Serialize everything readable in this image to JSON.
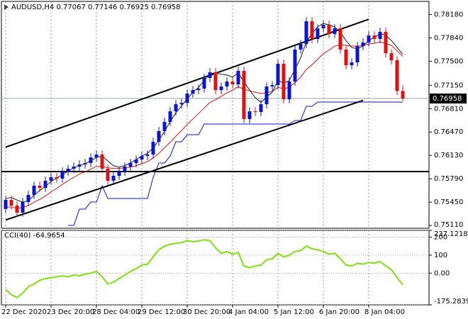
{
  "chart_data": [
    {
      "type": "candlestick",
      "title": "AUDUSD,H4  0.77067 0.77146 0.76925 0.76958",
      "categories": [
        "22 Dec 2020",
        null,
        null,
        null,
        null,
        null,
        null,
        null,
        "23 Dec 20:00",
        null,
        null,
        null,
        null,
        null,
        null,
        null,
        "28 Dec 04:00",
        null,
        null,
        null,
        null,
        null,
        null,
        null,
        "29 Dec 12:00",
        null,
        null,
        null,
        null,
        null,
        null,
        null,
        "30 Dec 20:00",
        null,
        null,
        null,
        null,
        null,
        null,
        null,
        "4 Jan 04:00",
        null,
        null,
        null,
        null,
        null,
        null,
        null,
        "5 Jan 12:00",
        null,
        null,
        null,
        null,
        null,
        null,
        null,
        "6 Jan 20:00",
        null,
        null,
        null,
        null,
        null,
        null,
        null,
        "8 Jan 04:00",
        null,
        null,
        null,
        null,
        null,
        null
      ],
      "open": [
        0.7535,
        0.75483,
        0.754,
        0.75297,
        0.75452,
        0.75555,
        0.75689,
        0.75658,
        0.75761,
        0.75813,
        0.75792,
        0.75895,
        0.75936,
        0.75967,
        0.75998,
        0.76019,
        0.76101,
        0.76143,
        0.75936,
        0.75761,
        0.75833,
        0.75895,
        0.75967,
        0.76019,
        0.7607,
        0.76122,
        0.76143,
        0.76328,
        0.76483,
        0.76617,
        0.76771,
        0.76874,
        0.76894,
        0.77029,
        0.7708,
        0.77101,
        0.77256,
        0.77339,
        0.7708,
        0.77132,
        0.77204,
        0.77163,
        0.7736,
        0.76658,
        0.76771,
        0.76761,
        0.76874,
        0.77132,
        0.77153,
        0.77463,
        0.76947,
        0.77205,
        0.77669,
        0.77751,
        0.78081,
        0.77824,
        0.77978,
        0.7803,
        0.77896,
        0.77978,
        0.77669,
        0.77442,
        0.77483,
        0.7772,
        0.77772,
        0.77875,
        0.77824,
        0.77927,
        0.77617,
        0.77514,
        0.77067
      ],
      "high": [
        0.75543,
        0.75543,
        0.7546,
        0.75512,
        0.75615,
        0.75749,
        0.75749,
        0.75821,
        0.75873,
        0.75873,
        0.75955,
        0.75996,
        0.76027,
        0.76058,
        0.76079,
        0.76161,
        0.76203,
        0.76203,
        0.75996,
        0.75893,
        0.75955,
        0.76027,
        0.76079,
        0.7613,
        0.76182,
        0.76203,
        0.76388,
        0.76543,
        0.76677,
        0.76831,
        0.76934,
        0.76954,
        0.77089,
        0.7714,
        0.77161,
        0.77316,
        0.77399,
        0.77399,
        0.77192,
        0.77264,
        0.77264,
        0.7742,
        0.7742,
        0.76831,
        0.76831,
        0.76934,
        0.77192,
        0.77213,
        0.77523,
        0.77523,
        0.77265,
        0.77729,
        0.77811,
        0.78141,
        0.78141,
        0.78038,
        0.7809,
        0.7809,
        0.78038,
        0.78038,
        0.77729,
        0.77543,
        0.7778,
        0.77832,
        0.77935,
        0.77935,
        0.77987,
        0.77987,
        0.77677,
        0.77574,
        0.77146
      ],
      "low": [
        0.7529,
        0.7534,
        0.75237,
        0.75237,
        0.75392,
        0.75495,
        0.75598,
        0.75598,
        0.75701,
        0.75732,
        0.75732,
        0.75835,
        0.75876,
        0.75907,
        0.75938,
        0.75959,
        0.76041,
        0.75876,
        0.75701,
        0.75701,
        0.75773,
        0.75835,
        0.75907,
        0.75959,
        0.7601,
        0.76062,
        0.76083,
        0.76268,
        0.76423,
        0.76557,
        0.76711,
        0.76814,
        0.76834,
        0.76969,
        0.7702,
        0.77041,
        0.77196,
        0.7702,
        0.7702,
        0.77072,
        0.77103,
        0.77103,
        0.76598,
        0.76598,
        0.76701,
        0.76701,
        0.76814,
        0.77072,
        0.77093,
        0.76887,
        0.76887,
        0.77145,
        0.77609,
        0.77691,
        0.77764,
        0.77764,
        0.77918,
        0.77836,
        0.77836,
        0.77609,
        0.77382,
        0.77382,
        0.77423,
        0.7766,
        0.77712,
        0.77764,
        0.77764,
        0.77557,
        0.77454,
        0.77007,
        0.76925
      ],
      "close": [
        0.75483,
        0.754,
        0.75297,
        0.75452,
        0.75555,
        0.75689,
        0.75658,
        0.75761,
        0.75813,
        0.75792,
        0.75895,
        0.75936,
        0.75967,
        0.75998,
        0.76019,
        0.76101,
        0.76143,
        0.75936,
        0.75761,
        0.75833,
        0.75895,
        0.75967,
        0.76019,
        0.7607,
        0.76122,
        0.76143,
        0.76328,
        0.76483,
        0.76617,
        0.76771,
        0.76874,
        0.76894,
        0.77029,
        0.7708,
        0.77101,
        0.77256,
        0.77339,
        0.7708,
        0.77132,
        0.77204,
        0.77163,
        0.7736,
        0.76658,
        0.76771,
        0.76761,
        0.76874,
        0.77132,
        0.77153,
        0.77463,
        0.76947,
        0.77205,
        0.77669,
        0.77751,
        0.78081,
        0.77824,
        0.77978,
        0.7803,
        0.77896,
        0.77978,
        0.77669,
        0.77442,
        0.77483,
        0.7772,
        0.77772,
        0.77875,
        0.77824,
        0.77927,
        0.77617,
        0.77514,
        0.77067,
        0.76958
      ],
      "colors": {
        "up": "#0a14d2",
        "down": "#e01010"
      },
      "series": [
        {
          "color": "#e01010",
          "values": [
            0.7538,
            0.7538,
            0.7536,
            0.7537,
            0.754,
            0.7545,
            0.7549,
            0.7554,
            0.756,
            0.7565,
            0.7571,
            0.7576,
            0.7581,
            0.7586,
            0.7589,
            0.7593,
            0.7597,
            0.7597,
            0.7595,
            0.7594,
            0.7594,
            0.7595,
            0.7596,
            0.7598,
            0.7601,
            0.7604,
            0.7609,
            0.7616,
            0.7624,
            0.7632,
            0.7641,
            0.7649,
            0.7658,
            0.7666,
            0.7674,
            0.7682,
            0.769,
            0.7694,
            0.7699,
            0.7704,
            0.7708,
            0.7713,
            0.7709,
            0.7707,
            0.7705,
            0.7703,
            0.7704,
            0.7706,
            0.7712,
            0.771,
            0.7712,
            0.7719,
            0.7727,
            0.7738,
            0.7745,
            0.7753,
            0.7761,
            0.7766,
            0.7772,
            0.7774,
            0.7773,
            0.7772,
            0.7772,
            0.7773,
            0.7775,
            0.7776,
            0.7778,
            0.7776,
            0.7773,
            0.7765,
            0.7757
          ]
        },
        {
          "color": "#202020",
          "values": [
            0.755,
            0.7552,
            0.7548,
            0.7545,
            0.7547,
            0.7555,
            0.7562,
            0.7568,
            0.7575,
            0.758,
            0.7585,
            0.759,
            0.7595,
            0.7598,
            0.7601,
            0.7605,
            0.761,
            0.7612,
            0.7605,
            0.7598,
            0.7596,
            0.7598,
            0.7602,
            0.7607,
            0.7612,
            0.7616,
            0.7624,
            0.7635,
            0.7648,
            0.7662,
            0.7675,
            0.7685,
            0.7695,
            0.7705,
            0.7712,
            0.7722,
            0.7732,
            0.7733,
            0.7731,
            0.773,
            0.7727,
            0.7733,
            0.772,
            0.7708,
            0.7697,
            0.769,
            0.7698,
            0.7705,
            0.7722,
            0.7718,
            0.7722,
            0.7738,
            0.7755,
            0.7778,
            0.779,
            0.78,
            0.7805,
            0.7803,
            0.78,
            0.7792,
            0.778,
            0.777,
            0.7768,
            0.7772,
            0.778,
            0.7785,
            0.779,
            0.7788,
            0.778,
            0.777,
            0.776
          ]
        },
        {
          "color": "#0a14d2",
          "values": [
            null,
            null,
            null,
            null,
            null,
            null,
            null,
            null,
            null,
            null,
            null,
            0.75111,
            0.75111,
            0.75348,
            0.75348,
            0.75451,
            0.75451,
            0.75689,
            0.75503,
            0.75503,
            0.75503,
            0.75503,
            0.75503,
            0.75503,
            0.75503,
            0.75503,
            0.75812,
            0.76019,
            0.76019,
            0.76122,
            0.76328,
            0.76328,
            0.76431,
            0.76431,
            0.76431,
            0.76586,
            0.76586,
            0.76586,
            0.76586,
            0.76586,
            0.76586,
            0.76586,
            0.76586,
            0.76586,
            0.76586,
            0.76586,
            0.76586,
            0.76586,
            0.76586,
            0.76586,
            0.76586,
            0.76638,
            0.76638,
            0.76844,
            0.76844,
            0.76906,
            0.76906,
            0.76906,
            0.76906,
            0.76906,
            0.76906,
            0.76906,
            0.76906,
            0.76906,
            0.76906,
            0.76906,
            0.76906,
            0.76906,
            0.76906,
            0.76906,
            0.76906
          ]
        }
      ],
      "trendlines": [
        {
          "x": [
            0,
            64
          ],
          "y": [
            0.7625,
            0.7811
          ]
        },
        {
          "x": [
            0,
            63
          ],
          "y": [
            0.7519,
            0.7693
          ]
        }
      ],
      "hlines": [
        0.75895
      ],
      "last_price": {
        "value": 0.76958,
        "label": "0.76958"
      },
      "ylim": [
        0.7507,
        0.7837
      ],
      "yticks": [
        {
          "value": 0.7818,
          "label": "0.78180"
        },
        {
          "value": 0.7784,
          "label": "0.77840"
        },
        {
          "value": 0.775,
          "label": "0.77500"
        },
        {
          "value": 0.7715,
          "label": "0.77150"
        },
        {
          "value": 0.7681,
          "label": "0.76810"
        },
        {
          "value": 0.7647,
          "label": "0.76470"
        },
        {
          "value": 0.7613,
          "label": "0.76130"
        },
        {
          "value": 0.7579,
          "label": "0.75790"
        },
        {
          "value": 0.7545,
          "label": "0.75450"
        },
        {
          "value": 0.7511,
          "label": "0.75110"
        }
      ],
      "grid": "x"
    },
    {
      "type": "line",
      "title": "CCI(40) -64.9654",
      "series": [
        {
          "color": "#80e010",
          "values": [
            -90,
            -120,
            -135,
            -110,
            -75,
            -60,
            -40,
            -30,
            -25,
            -20,
            -15,
            -20,
            -10,
            -15,
            -5,
            0,
            10,
            -20,
            -60,
            -50,
            -30,
            -10,
            10,
            25,
            45,
            50,
            90,
            130,
            150,
            160,
            165,
            170,
            180,
            175,
            178,
            185,
            180,
            140,
            110,
            120,
            105,
            115,
            40,
            30,
            40,
            45,
            75,
            80,
            110,
            90,
            100,
            120,
            125,
            150,
            135,
            130,
            120,
            105,
            110,
            80,
            45,
            40,
            55,
            50,
            60,
            55,
            65,
            40,
            20,
            -25,
            -64.9654
          ]
        }
      ],
      "ylim": [
        -175.2839,
        237.1218
      ],
      "yticks": [
        237.1218,
        200,
        100,
        {
          "value": 0,
          "label": "0.00"
        },
        -175.2839
      ],
      "grid": "y"
    }
  ]
}
